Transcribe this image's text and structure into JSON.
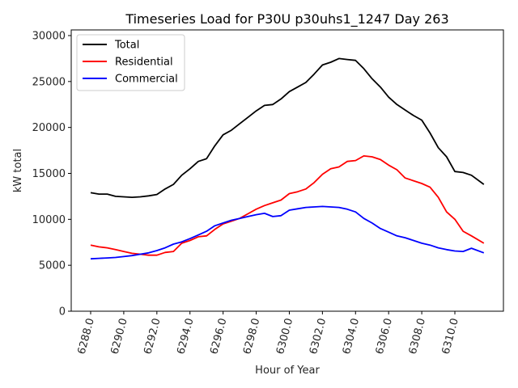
{
  "chart_data": {
    "type": "line",
    "title": "Timeseries Load for P30U p30uhs1_1247  Day 263",
    "xlabel": "Hour of Year",
    "ylabel": "kW total",
    "xlim": [
      6286.8,
      6313.0
    ],
    "ylim": [
      0,
      30500
    ],
    "xticks": [
      6288,
      6290,
      6292,
      6294,
      6296,
      6298,
      6300,
      6302,
      6304,
      6306,
      6308,
      6310
    ],
    "xtick_labels": [
      "6288.0",
      "6290.0",
      "6292.0",
      "6294.0",
      "6296.0",
      "6298.0",
      "6300.0",
      "6302.0",
      "6304.0",
      "6306.0",
      "6308.0",
      "6310.0"
    ],
    "yticks": [
      0,
      5000,
      10000,
      15000,
      20000,
      25000,
      30000
    ],
    "ytick_labels": [
      "0",
      "5000",
      "10000",
      "15000",
      "20000",
      "25000",
      "30000"
    ],
    "grid": false,
    "legend_position": "top-left",
    "x": [
      6288.0,
      6288.5,
      6289.0,
      6289.5,
      6290.0,
      6290.5,
      6291.0,
      6291.5,
      6292.0,
      6292.5,
      6293.0,
      6293.5,
      6294.0,
      6294.5,
      6295.0,
      6295.5,
      6296.0,
      6296.5,
      6297.0,
      6297.5,
      6298.0,
      6298.5,
      6299.0,
      6299.5,
      6300.0,
      6300.5,
      6301.0,
      6301.5,
      6302.0,
      6302.5,
      6303.0,
      6303.5,
      6304.0,
      6304.5,
      6305.0,
      6305.5,
      6306.0,
      6306.5,
      6307.0,
      6307.5,
      6308.0,
      6308.5,
      6309.0,
      6309.5,
      6310.0,
      6310.5,
      6311.0,
      6311.75
    ],
    "series": [
      {
        "name": "Total",
        "color": "#000000",
        "values": [
          12900,
          12750,
          12750,
          12500,
          12450,
          12400,
          12450,
          12550,
          12700,
          13300,
          13800,
          14800,
          15500,
          16300,
          16600,
          18000,
          19200,
          19700,
          20400,
          21100,
          21800,
          22400,
          22500,
          23100,
          23900,
          24400,
          24900,
          25800,
          26800,
          27100,
          27500,
          27400,
          27300,
          26400,
          25300,
          24400,
          23300,
          22500,
          21900,
          21300,
          20800,
          19400,
          17800,
          16800,
          15200,
          15100,
          14800,
          13800
        ]
      },
      {
        "name": "Residential",
        "color": "#ff0000",
        "values": [
          7200,
          7000,
          6900,
          6700,
          6500,
          6300,
          6200,
          6100,
          6100,
          6400,
          6500,
          7400,
          7700,
          8100,
          8200,
          8900,
          9500,
          9800,
          10100,
          10600,
          11100,
          11500,
          11800,
          12100,
          12800,
          13000,
          13300,
          14000,
          14900,
          15500,
          15700,
          16300,
          16400,
          16900,
          16800,
          16500,
          15900,
          15400,
          14500,
          14200,
          13900,
          13500,
          12400,
          10800,
          10000,
          8700,
          8200,
          7400
        ]
      },
      {
        "name": "Commercial",
        "color": "#0000ff",
        "values": [
          5700,
          5750,
          5800,
          5850,
          5950,
          6050,
          6200,
          6350,
          6600,
          6900,
          7300,
          7550,
          7900,
          8300,
          8700,
          9300,
          9600,
          9900,
          10100,
          10300,
          10500,
          10650,
          10300,
          10400,
          11000,
          11150,
          11300,
          11350,
          11400,
          11350,
          11300,
          11100,
          10800,
          10100,
          9600,
          9000,
          8600,
          8200,
          8000,
          7700,
          7400,
          7200,
          6900,
          6700,
          6550,
          6500,
          6850,
          6350
        ]
      }
    ]
  }
}
